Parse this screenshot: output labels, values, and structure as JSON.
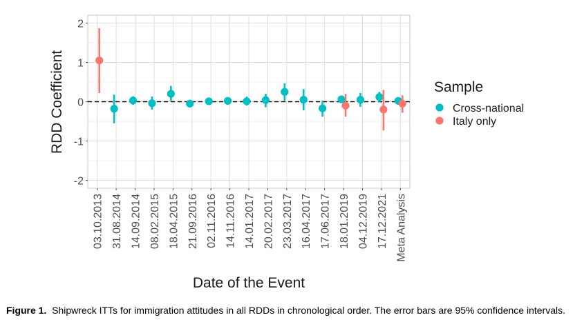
{
  "chart_data": {
    "type": "scatter",
    "style": "point-range",
    "xlabel": "Date of the Event",
    "ylabel": "RDD Coefficient",
    "ylim": [
      -2.2,
      2.2
    ],
    "yticks": [
      -2,
      -1,
      0,
      1,
      2
    ],
    "grid": true,
    "reference_line": {
      "y": 0,
      "style": "dashed"
    },
    "categories": [
      "03.10.2013",
      "31.08.2014",
      "14.09.2014",
      "08.02.2015",
      "18.04.2015",
      "21.09.2016",
      "02.11.2016",
      "14.11.2016",
      "14.01.2017",
      "20.02.2017",
      "23.03.2017",
      "16.04.2017",
      "17.06.2017",
      "18.01.2019",
      "04.12.2019",
      "17.12.2021",
      "Meta Analysis"
    ],
    "legend": {
      "title": "Sample",
      "position": "right"
    },
    "series": [
      {
        "name": "Cross-national",
        "color": "#00BFC4",
        "points": [
          {
            "x": "31.08.2014",
            "y": -0.18,
            "lo": -0.55,
            "hi": 0.18
          },
          {
            "x": "14.09.2014",
            "y": 0.03,
            "lo": -0.08,
            "hi": 0.14
          },
          {
            "x": "08.02.2015",
            "y": -0.04,
            "lo": -0.2,
            "hi": 0.13
          },
          {
            "x": "18.04.2015",
            "y": 0.2,
            "lo": 0.02,
            "hi": 0.4
          },
          {
            "x": "21.09.2016",
            "y": -0.05,
            "lo": -0.14,
            "hi": 0.05
          },
          {
            "x": "02.11.2016",
            "y": 0.01,
            "lo": -0.04,
            "hi": 0.06
          },
          {
            "x": "14.11.2016",
            "y": 0.02,
            "lo": -0.03,
            "hi": 0.07
          },
          {
            "x": "14.01.2017",
            "y": 0.01,
            "lo": -0.1,
            "hi": 0.13
          },
          {
            "x": "20.02.2017",
            "y": 0.04,
            "lo": -0.14,
            "hi": 0.2
          },
          {
            "x": "23.03.2017",
            "y": 0.25,
            "lo": 0.02,
            "hi": 0.47
          },
          {
            "x": "16.04.2017",
            "y": 0.05,
            "lo": -0.22,
            "hi": 0.32
          },
          {
            "x": "17.06.2017",
            "y": -0.17,
            "lo": -0.38,
            "hi": 0.03
          },
          {
            "x": "18.01.2019",
            "y": 0.06,
            "lo": -0.02,
            "hi": 0.14
          },
          {
            "x": "04.12.2019",
            "y": 0.05,
            "lo": -0.13,
            "hi": 0.22
          },
          {
            "x": "17.12.2021",
            "y": 0.12,
            "lo": -0.02,
            "hi": 0.25
          },
          {
            "x": "Meta Analysis",
            "y": 0.02,
            "lo": -0.04,
            "hi": 0.08
          }
        ]
      },
      {
        "name": "Italy only",
        "color": "#F8766D",
        "points": [
          {
            "x": "03.10.2013",
            "y": 1.05,
            "lo": 0.22,
            "hi": 1.87
          },
          {
            "x": "18.01.2019",
            "y": -0.1,
            "lo": -0.38,
            "hi": 0.2
          },
          {
            "x": "17.12.2021",
            "y": -0.2,
            "lo": -0.73,
            "hi": 0.3
          },
          {
            "x": "Meta Analysis",
            "y": -0.05,
            "lo": -0.28,
            "hi": 0.16
          }
        ]
      }
    ]
  },
  "caption": {
    "label": "Figure 1.",
    "text": "Shipwreck ITTs for immigration attitudes in all RDDs in chronological order. The error bars are 95% confidence intervals."
  }
}
